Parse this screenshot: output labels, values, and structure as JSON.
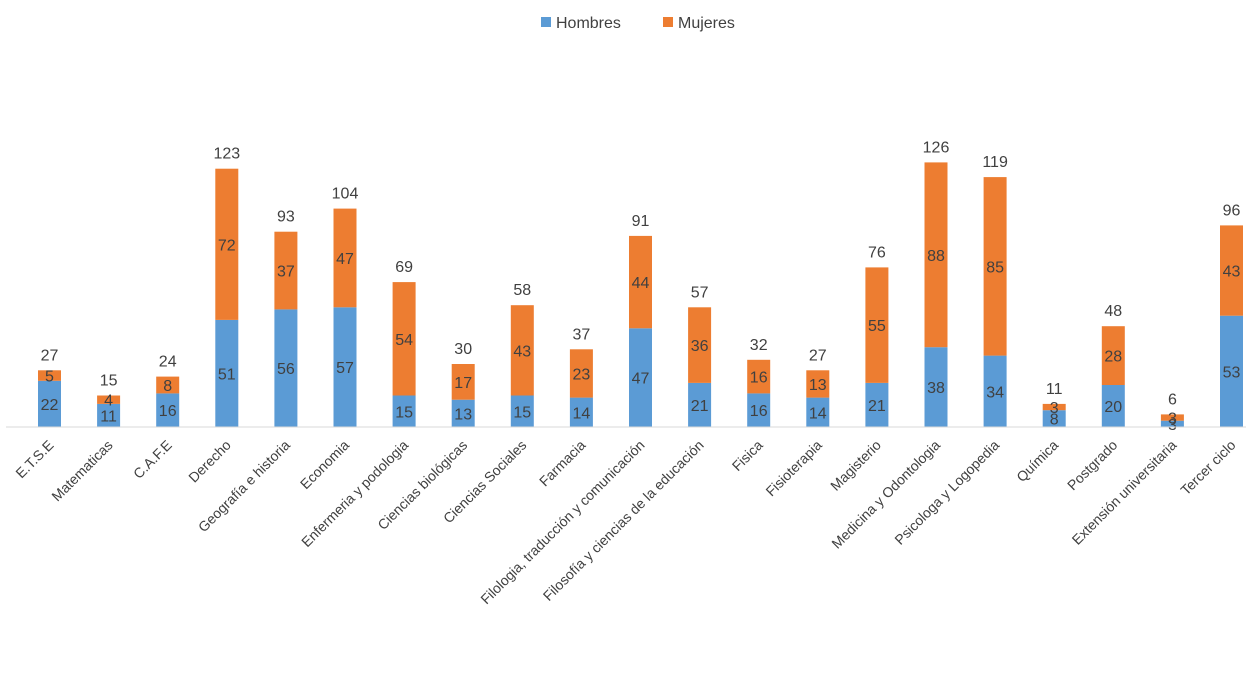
{
  "chart_data": {
    "type": "bar",
    "stacked": true,
    "title": "",
    "xlabel": "",
    "ylabel": "",
    "ylim": [
      0,
      126
    ],
    "grid": false,
    "legend": "top-center",
    "categories": [
      "E.T.S.E",
      "Matematicas",
      "C.A.F.E",
      "Derecho",
      "Geografía e historia",
      "Economia",
      "Enfermeria y podologia",
      "Ciencias biológicas",
      "Ciencias Sociales",
      "Farmacia",
      "Filologia, traducción y comunicación",
      "Filosofía y ciencias de la educación",
      "Fisica",
      "Fisioterapia",
      "Magisterio",
      "Medicina y Odontologia",
      "Psicologa y Logopedia",
      "Química",
      "Postgrado",
      "Extensión universitaria",
      "Tercer ciclo"
    ],
    "series": [
      {
        "name": "Hombres",
        "color": "#5B9BD5",
        "values": [
          22,
          11,
          16,
          51,
          56,
          57,
          15,
          13,
          15,
          14,
          47,
          21,
          16,
          14,
          21,
          38,
          34,
          8,
          20,
          3,
          53
        ]
      },
      {
        "name": "Mujeres",
        "color": "#ED7D31",
        "values": [
          5,
          4,
          8,
          72,
          37,
          47,
          54,
          17,
          43,
          23,
          44,
          36,
          16,
          13,
          55,
          88,
          85,
          3,
          28,
          3,
          43
        ]
      }
    ],
    "totals": [
      27,
      15,
      24,
      123,
      93,
      104,
      69,
      30,
      58,
      37,
      91,
      57,
      32,
      27,
      76,
      126,
      119,
      11,
      48,
      6,
      96
    ]
  }
}
